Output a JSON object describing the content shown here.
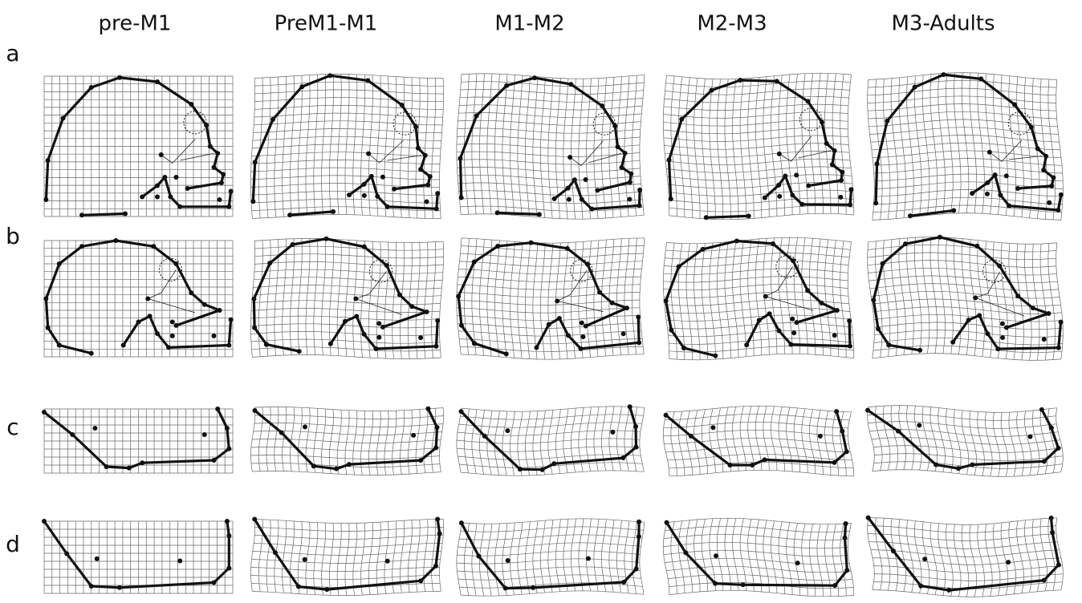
{
  "columns": [
    "pre-M1",
    "PreM1-M1",
    "M1-M2",
    "M2-M3",
    "M3-Adults"
  ],
  "rows": [
    "a",
    "b",
    "c",
    "d"
  ]
}
